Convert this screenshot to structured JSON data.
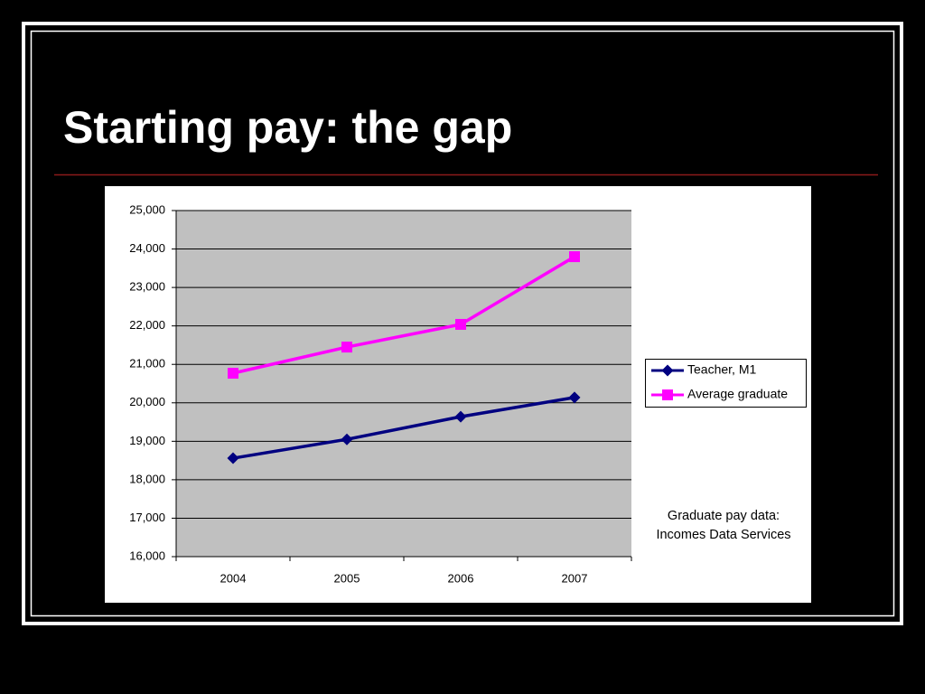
{
  "chart_data": {
    "type": "line",
    "title": "Starting pay: the gap",
    "categories": [
      "2004",
      "2005",
      "2006",
      "2007"
    ],
    "series": [
      {
        "name": "Teacher, M1",
        "color": "#000080",
        "marker": "diamond",
        "values": [
          18560,
          19050,
          19640,
          20140
        ]
      },
      {
        "name": "Average graduate",
        "color": "#ff00ff",
        "marker": "square",
        "values": [
          20770,
          21450,
          22040,
          23800
        ]
      }
    ],
    "ylim": [
      16000,
      25000
    ],
    "yticks": [
      {
        "value": 16000,
        "label": "16,000"
      },
      {
        "value": 17000,
        "label": "17,000"
      },
      {
        "value": 18000,
        "label": "18,000"
      },
      {
        "value": 19000,
        "label": "19,000"
      },
      {
        "value": 20000,
        "label": "20,000"
      },
      {
        "value": 21000,
        "label": "21,000"
      },
      {
        "value": 22000,
        "label": "22,000"
      },
      {
        "value": 23000,
        "label": "23,000"
      },
      {
        "value": 24000,
        "label": "24,000"
      },
      {
        "value": 25000,
        "label": "25,000"
      }
    ],
    "grid": true,
    "legend": "right",
    "annotation": [
      "Graduate pay data:",
      "Incomes Data Services"
    ]
  }
}
